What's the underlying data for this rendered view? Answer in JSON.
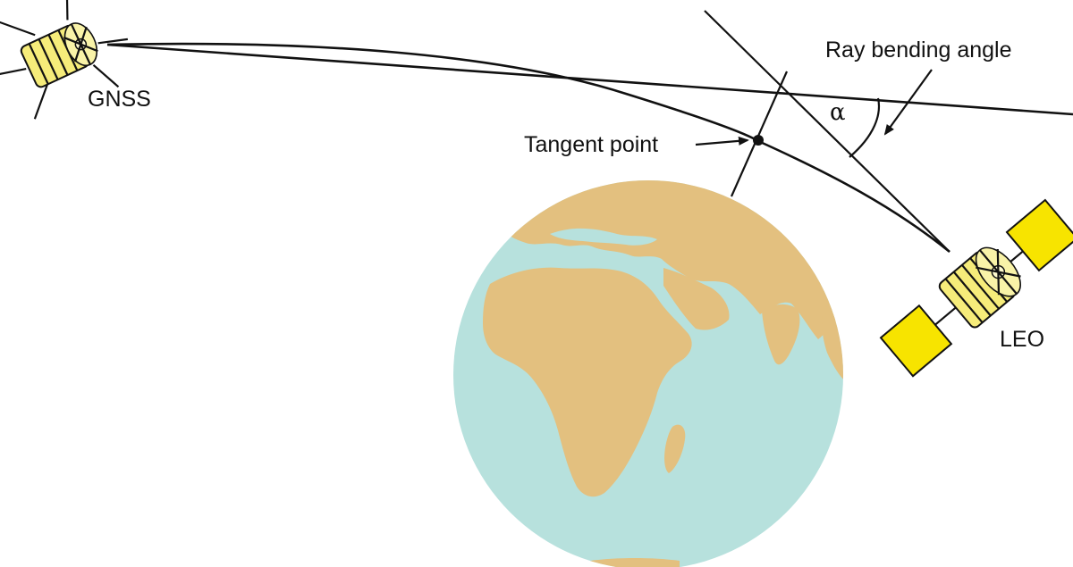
{
  "labels": {
    "gnss": "GNSS",
    "leo": "LEO",
    "tangent_point": "Tangent point",
    "ray_bending_angle": "Ray bending angle",
    "alpha": "α"
  },
  "colors": {
    "ocean": "#b7e1dd",
    "land": "#e3c07f",
    "satellite_body": "#f6ec7a",
    "solar_panel": "#f7e400",
    "line": "#111111"
  },
  "icons": {
    "gnss_satellite": "gnss-satellite-icon",
    "leo_satellite": "leo-satellite-icon",
    "earth": "earth-globe"
  }
}
